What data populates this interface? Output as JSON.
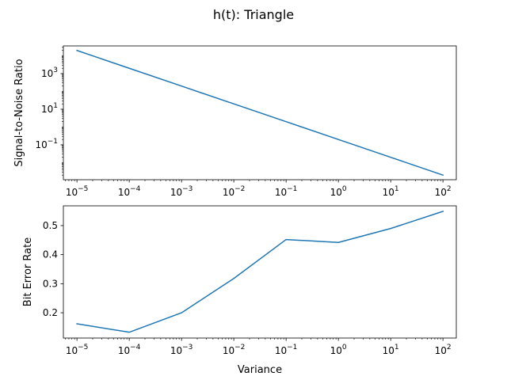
{
  "figure_title": "h(t): Triangle",
  "chart_data": [
    {
      "type": "line",
      "xlabel": "",
      "ylabel": "Signal-to-Noise Ratio",
      "xscale": "log",
      "yscale": "log",
      "x": [
        1e-05,
        0.0001,
        0.001,
        0.01,
        0.1,
        1,
        10,
        100
      ],
      "series": [
        {
          "values": [
            20000,
            2000,
            200,
            20,
            2,
            0.2,
            0.02,
            0.002
          ],
          "color": "#1f77b4"
        }
      ],
      "xlim": [
        5.5e-06,
        180
      ],
      "ylim": [
        0.0011,
        36000
      ],
      "x_ticks": [
        {
          "value": 1e-05,
          "base": "10",
          "exp": "−5"
        },
        {
          "value": 0.0001,
          "base": "10",
          "exp": "−4"
        },
        {
          "value": 0.001,
          "base": "10",
          "exp": "−3"
        },
        {
          "value": 0.01,
          "base": "10",
          "exp": "−2"
        },
        {
          "value": 0.1,
          "base": "10",
          "exp": "−1"
        },
        {
          "value": 1,
          "base": "10",
          "exp": "0"
        },
        {
          "value": 10,
          "base": "10",
          "exp": "1"
        },
        {
          "value": 100,
          "base": "10",
          "exp": "2"
        }
      ],
      "y_ticks": [
        {
          "value": 0.1,
          "base": "10",
          "exp": "−1"
        },
        {
          "value": 10,
          "base": "10",
          "exp": "1"
        },
        {
          "value": 1000,
          "base": "10",
          "exp": "3"
        }
      ],
      "grid": false
    },
    {
      "type": "line",
      "xlabel": "Variance",
      "ylabel": "Bit Error Rate",
      "xscale": "log",
      "yscale": "linear",
      "x": [
        1e-05,
        0.0001,
        0.001,
        0.01,
        0.1,
        1,
        10,
        100
      ],
      "series": [
        {
          "values": [
            0.162,
            0.133,
            0.2,
            0.318,
            0.452,
            0.442,
            0.49,
            0.549
          ],
          "color": "#1f77b4"
        }
      ],
      "xlim": [
        5.5e-06,
        180
      ],
      "ylim": [
        0.113,
        0.568
      ],
      "x_ticks": [
        {
          "value": 1e-05,
          "base": "10",
          "exp": "−5"
        },
        {
          "value": 0.0001,
          "base": "10",
          "exp": "−4"
        },
        {
          "value": 0.001,
          "base": "10",
          "exp": "−3"
        },
        {
          "value": 0.01,
          "base": "10",
          "exp": "−2"
        },
        {
          "value": 0.1,
          "base": "10",
          "exp": "−1"
        },
        {
          "value": 1,
          "base": "10",
          "exp": "0"
        },
        {
          "value": 10,
          "base": "10",
          "exp": "1"
        },
        {
          "value": 100,
          "base": "10",
          "exp": "2"
        }
      ],
      "y_ticks": [
        {
          "value": 0.2,
          "label": "0.2"
        },
        {
          "value": 0.3,
          "label": "0.3"
        },
        {
          "value": 0.4,
          "label": "0.4"
        },
        {
          "value": 0.5,
          "label": "0.5"
        }
      ],
      "grid": false
    }
  ]
}
